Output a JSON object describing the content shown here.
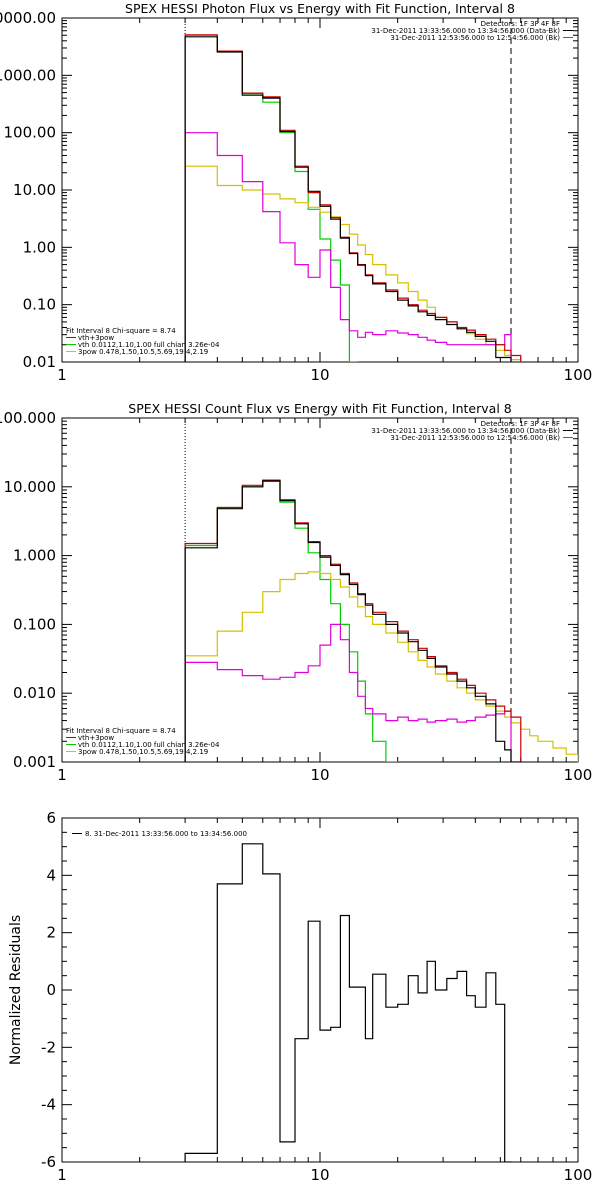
{
  "chart_data": [
    {
      "type": "line",
      "title": "SPEX HESSI Photon Flux vs Energy with Fit Function, Interval 8",
      "xscale": "log",
      "yscale": "log",
      "xlim": [
        1,
        100
      ],
      "ylim": [
        0.01,
        10000
      ],
      "xticks": [
        {
          "v": 1,
          "label": "1"
        },
        {
          "v": 10,
          "label": "10"
        },
        {
          "v": 100,
          "label": "100"
        }
      ],
      "yticks": [
        {
          "v": 10000,
          "label": "10000.00"
        },
        {
          "v": 1000,
          "label": "1000.00"
        },
        {
          "v": 100,
          "label": "100.00"
        },
        {
          "v": 10,
          "label": "10.00"
        },
        {
          "v": 1,
          "label": "1.00"
        },
        {
          "v": 0.1,
          "label": "0.10"
        },
        {
          "v": 0.01,
          "label": "0.01"
        }
      ],
      "vlines": [
        {
          "x": 3,
          "style": "dotted"
        },
        {
          "x": 55,
          "style": "dashed"
        }
      ],
      "legend_topright": [
        {
          "text": "Detectors: 1F 3F 4F 8F",
          "color": ""
        },
        {
          "text": "31-Dec-2011 13:33:56.000 to 13:34:56.000 (Data-Bk)",
          "color": "#000000"
        },
        {
          "text": "31-Dec-2011 12:53:56.000 to 12:54:56.000 (Bk)",
          "color": "#e000e0"
        }
      ],
      "legend_bottomleft": [
        {
          "text": "Fit Interval 8   Chi-square = 8.74",
          "color": ""
        },
        {
          "text": "vth+3pow",
          "color": "#cc0000"
        },
        {
          "text": "vth 0.0112,1.10,1.00  full chian 3.26e-04",
          "color": "#00cc00"
        },
        {
          "text": "3pow 0.478,1.50,10.5,5.69,19.4,2.19",
          "color": "#d6c000"
        }
      ],
      "edges": [
        3,
        4,
        5,
        6,
        7,
        8,
        9,
        10,
        11,
        12,
        13,
        14,
        15,
        16,
        18,
        20,
        22,
        24,
        26,
        28,
        31,
        34,
        37,
        40,
        44,
        48,
        52,
        55,
        60,
        65,
        70,
        80
      ],
      "series": [
        {
          "name": "",
          "color": "#00cc00",
          "values": [
            5000,
            2600,
            480,
            340,
            100,
            21,
            4.6,
            1.4,
            0.6,
            0.22,
            0.01,
            null,
            null,
            null,
            null,
            null,
            null,
            null,
            null,
            null,
            null,
            null,
            null,
            null,
            null,
            null,
            null,
            null,
            null,
            null,
            null
          ]
        },
        {
          "name": "",
          "color": "#d6c000",
          "values": [
            26,
            12,
            10,
            8.5,
            7,
            6,
            5,
            4.1,
            3.4,
            2.5,
            1.7,
            1.1,
            0.75,
            0.5,
            0.33,
            0.24,
            0.17,
            0.12,
            0.09,
            0.06,
            0.05,
            0.038,
            0.031,
            0.025,
            0.02,
            0.016,
            0.013,
            0.011,
            0.009,
            0.008,
            0.007
          ]
        },
        {
          "name": "",
          "color": "#e000e0",
          "values": [
            100,
            40,
            14,
            4.2,
            1.2,
            0.5,
            0.3,
            0.9,
            0.2,
            0.055,
            0.035,
            0.027,
            0.033,
            0.03,
            0.035,
            0.032,
            0.03,
            0.027,
            0.024,
            0.022,
            0.02,
            0.02,
            0.02,
            0.02,
            0.02,
            0.02,
            0.03,
            null,
            null,
            null,
            null
          ]
        },
        {
          "name": "",
          "color": "#cc0000",
          "values": [
            5100,
            2650,
            490,
            420,
            110,
            26,
            9,
            5.5,
            3.3,
            1.5,
            0.8,
            0.5,
            0.33,
            0.24,
            0.18,
            0.13,
            0.1,
            0.08,
            0.07,
            0.06,
            0.05,
            0.04,
            0.036,
            0.03,
            0.025,
            0.02,
            0.016,
            0.013,
            null,
            null,
            null
          ]
        },
        {
          "name": "",
          "color": "#000000",
          "values": [
            4700,
            2550,
            450,
            400,
            105,
            25,
            9.5,
            5.2,
            3.1,
            1.45,
            0.78,
            0.49,
            0.32,
            0.23,
            0.17,
            0.12,
            0.095,
            0.075,
            0.065,
            0.055,
            0.045,
            0.038,
            0.033,
            0.028,
            0.023,
            0.012,
            0.012,
            0.008,
            null,
            null,
            null
          ]
        }
      ]
    },
    {
      "type": "line",
      "title": "SPEX HESSI Count Flux vs Energy with Fit Function, Interval 8",
      "xscale": "log",
      "yscale": "log",
      "xlim": [
        1,
        100
      ],
      "ylim": [
        0.001,
        100
      ],
      "xticks": [
        {
          "v": 1,
          "label": "1"
        },
        {
          "v": 10,
          "label": "10"
        },
        {
          "v": 100,
          "label": "100"
        }
      ],
      "yticks": [
        {
          "v": 100,
          "label": "100.000"
        },
        {
          "v": 10,
          "label": "10.000"
        },
        {
          "v": 1,
          "label": "1.000"
        },
        {
          "v": 0.1,
          "label": "0.100"
        },
        {
          "v": 0.01,
          "label": "0.010"
        },
        {
          "v": 0.001,
          "label": "0.001"
        }
      ],
      "vlines": [
        {
          "x": 3,
          "style": "dotted"
        },
        {
          "x": 55,
          "style": "dashed"
        }
      ],
      "legend_topright": [
        {
          "text": "Detectors: 1F 3F 4F 8F",
          "color": ""
        },
        {
          "text": "31-Dec-2011 13:33:56.000 to 13:34:56.000 (Data-Bk)",
          "color": "#000000"
        },
        {
          "text": "31-Dec-2011 12:53:56.000 to 12:54:56.000 (Bk)",
          "color": "#e000e0"
        }
      ],
      "legend_bottomleft": [
        {
          "text": "Fit Interval 8   Chi-square = 8.74",
          "color": ""
        },
        {
          "text": "vth+3pow",
          "color": "#cc0000"
        },
        {
          "text": "vth 0.0112,1.10,1.00  full chian 3.26e-04",
          "color": "#00cc00"
        },
        {
          "text": "3pow 0.478,1.50,10.5,5.69,19.4,2.19",
          "color": "#d6c000"
        }
      ],
      "edges": [
        3,
        4,
        5,
        6,
        7,
        8,
        9,
        10,
        11,
        12,
        13,
        14,
        15,
        16,
        18,
        20,
        22,
        24,
        26,
        28,
        31,
        34,
        37,
        40,
        44,
        48,
        52,
        55,
        60,
        65,
        70,
        80,
        90,
        100
      ],
      "series": [
        {
          "name": "",
          "color": "#00cc00",
          "values": [
            1.4,
            5,
            10,
            12,
            6,
            2.5,
            1.1,
            0.45,
            0.2,
            0.1,
            0.04,
            0.015,
            0.005,
            0.002,
            0.001,
            null,
            null,
            null,
            null,
            null,
            null,
            null,
            null,
            null,
            null,
            null,
            null,
            null,
            null,
            null,
            null,
            null,
            null
          ]
        },
        {
          "name": "",
          "color": "#d6c000",
          "values": [
            0.035,
            0.08,
            0.15,
            0.3,
            0.45,
            0.55,
            0.58,
            0.55,
            0.45,
            0.35,
            0.25,
            0.18,
            0.13,
            0.1,
            0.075,
            0.055,
            0.04,
            0.03,
            0.024,
            0.019,
            0.015,
            0.012,
            0.01,
            0.008,
            0.0065,
            0.0055,
            0.0045,
            0.0037,
            0.003,
            0.0024,
            0.002,
            0.0016,
            0.0013
          ]
        },
        {
          "name": "",
          "color": "#e000e0",
          "values": [
            0.028,
            0.022,
            0.018,
            0.016,
            0.017,
            0.02,
            0.025,
            0.05,
            0.1,
            0.06,
            0.02,
            0.009,
            0.006,
            0.005,
            0.004,
            0.0045,
            0.004,
            0.0042,
            0.0038,
            0.004,
            0.0042,
            0.0038,
            0.004,
            0.0045,
            0.0048,
            0.005,
            0.0055,
            null,
            null,
            null,
            null,
            null,
            null
          ]
        },
        {
          "name": "",
          "color": "#cc0000",
          "values": [
            1.5,
            5,
            10.5,
            12.5,
            6.5,
            3,
            1.6,
            1,
            0.75,
            0.55,
            0.4,
            0.28,
            0.2,
            0.15,
            0.11,
            0.08,
            0.06,
            0.045,
            0.034,
            0.025,
            0.02,
            0.016,
            0.013,
            0.01,
            0.008,
            0.0065,
            0.0055,
            0.0045,
            null,
            null,
            null,
            null,
            null
          ]
        },
        {
          "name": "",
          "color": "#000000",
          "values": [
            1.3,
            4.8,
            10,
            12.2,
            6.3,
            2.9,
            1.55,
            0.95,
            0.72,
            0.53,
            0.38,
            0.27,
            0.19,
            0.14,
            0.1,
            0.075,
            0.056,
            0.042,
            0.032,
            0.024,
            0.019,
            0.015,
            0.012,
            0.009,
            0.007,
            0.002,
            0.0015,
            0.001,
            null,
            null,
            null,
            null,
            null
          ]
        }
      ]
    },
    {
      "type": "line",
      "title": "",
      "xscale": "log",
      "yscale": "linear",
      "xlim": [
        1,
        100
      ],
      "ylim": [
        -6,
        6
      ],
      "ylabel": "Normalized Residuals",
      "xticks": [
        {
          "v": 1,
          "label": "1"
        },
        {
          "v": 10,
          "label": "10"
        },
        {
          "v": 100,
          "label": "100"
        }
      ],
      "yticks": [
        {
          "v": 6,
          "label": "6"
        },
        {
          "v": 4,
          "label": "4"
        },
        {
          "v": 2,
          "label": "2"
        },
        {
          "v": 0,
          "label": "0"
        },
        {
          "v": -2,
          "label": "-2"
        },
        {
          "v": -4,
          "label": "-4"
        },
        {
          "v": -6,
          "label": "-6"
        }
      ],
      "vlines": [],
      "legend_topleft": [
        {
          "text": "8. 31-Dec-2011 13:33:56.000 to 13:34:56.000",
          "color": "#000000"
        }
      ],
      "edges": [
        3,
        4,
        5,
        6,
        7,
        8,
        9,
        10,
        11,
        12,
        13,
        14,
        15,
        16,
        18,
        20,
        22,
        24,
        26,
        28,
        31,
        34,
        37,
        40,
        44,
        48,
        52,
        55
      ],
      "series": [
        {
          "name": "",
          "color": "#000000",
          "values": [
            -5.7,
            3.7,
            5.1,
            4.05,
            -5.3,
            -1.7,
            2.4,
            -1.4,
            -1.3,
            2.6,
            0.1,
            0.1,
            -1.7,
            0.55,
            -0.6,
            -0.5,
            0.5,
            -0.1,
            1.0,
            0.0,
            0.4,
            0.65,
            -0.2,
            -0.6,
            0.6,
            -0.5,
            -6
          ]
        }
      ]
    }
  ]
}
